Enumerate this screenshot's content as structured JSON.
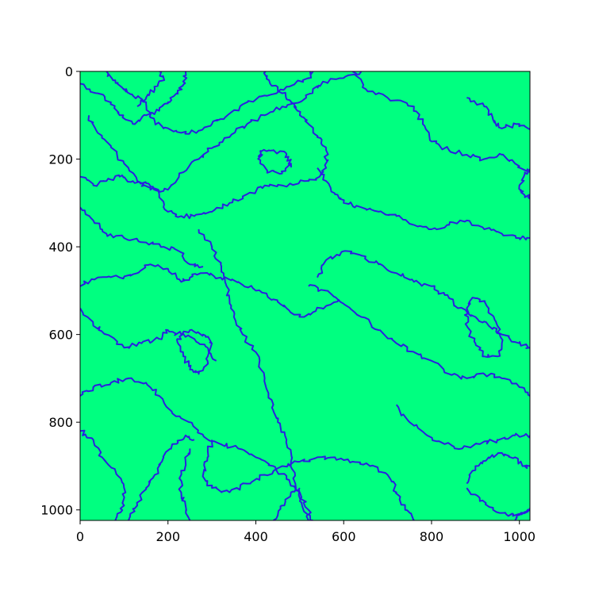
{
  "chart_data": {
    "type": "heatmap",
    "title": "",
    "xlabel": "",
    "ylabel": "",
    "xlim": [
      0,
      1024
    ],
    "ylim": [
      1024,
      0
    ],
    "x_ticks": [
      "0",
      "200",
      "400",
      "600",
      "800",
      "1000"
    ],
    "y_ticks": [
      "0",
      "200",
      "400",
      "600",
      "800",
      "1000"
    ],
    "y_axis_inverted": true,
    "grid": false,
    "legend": "none",
    "colors": {
      "region_fill": "#00ff80",
      "boundary_line": "#2a1fe0",
      "axes": "#000000",
      "background": "#ffffff"
    },
    "boundaries": [
      [
        [
          0,
          28
        ],
        [
          40,
          50
        ],
        [
          70,
          70
        ],
        [
          90,
          100
        ],
        [
          120,
          120
        ],
        [
          150,
          100
        ],
        [
          180,
          90
        ],
        [
          200,
          70
        ],
        [
          220,
          50
        ],
        [
          235,
          30
        ],
        [
          240,
          0
        ]
      ],
      [
        [
          60,
          0
        ],
        [
          80,
          20
        ],
        [
          100,
          40
        ],
        [
          120,
          55
        ],
        [
          150,
          70
        ],
        [
          160,
          105
        ],
        [
          190,
          130
        ],
        [
          230,
          140
        ],
        [
          270,
          135
        ],
        [
          300,
          120
        ],
        [
          330,
          105
        ],
        [
          370,
          75
        ],
        [
          420,
          55
        ],
        [
          470,
          35
        ],
        [
          520,
          15
        ],
        [
          530,
          0
        ]
      ],
      [
        [
          180,
          0
        ],
        [
          190,
          20
        ],
        [
          170,
          40
        ],
        [
          150,
          60
        ],
        [
          130,
          80
        ]
      ],
      [
        [
          20,
          100
        ],
        [
          40,
          140
        ],
        [
          70,
          170
        ],
        [
          100,
          210
        ],
        [
          130,
          250
        ],
        [
          160,
          270
        ],
        [
          200,
          270
        ],
        [
          235,
          230
        ],
        [
          270,
          200
        ],
        [
          300,
          175
        ],
        [
          340,
          150
        ],
        [
          380,
          120
        ],
        [
          420,
          100
        ],
        [
          460,
          80
        ],
        [
          500,
          70
        ],
        [
          530,
          40
        ],
        [
          560,
          25
        ],
        [
          600,
          15
        ],
        [
          640,
          0
        ]
      ],
      [
        [
          0,
          240
        ],
        [
          30,
          260
        ],
        [
          60,
          250
        ],
        [
          90,
          240
        ],
        [
          120,
          250
        ],
        [
          150,
          255
        ],
        [
          180,
          280
        ],
        [
          200,
          320
        ],
        [
          230,
          330
        ],
        [
          260,
          330
        ],
        [
          300,
          320
        ],
        [
          340,
          300
        ],
        [
          380,
          280
        ],
        [
          420,
          260
        ],
        [
          460,
          260
        ],
        [
          510,
          250
        ],
        [
          545,
          240
        ],
        [
          560,
          220
        ],
        [
          560,
          180
        ],
        [
          540,
          150
        ],
        [
          520,
          120
        ],
        [
          500,
          100
        ],
        [
          480,
          70
        ],
        [
          460,
          50
        ],
        [
          430,
          20
        ],
        [
          420,
          0
        ]
      ],
      [
        [
          0,
          310
        ],
        [
          30,
          340
        ],
        [
          60,
          370
        ],
        [
          100,
          380
        ],
        [
          150,
          390
        ],
        [
          190,
          400
        ],
        [
          225,
          410
        ],
        [
          250,
          440
        ],
        [
          280,
          445
        ]
      ],
      [
        [
          0,
          490
        ],
        [
          40,
          470
        ],
        [
          90,
          470
        ],
        [
          130,
          460
        ],
        [
          160,
          440
        ],
        [
          200,
          450
        ],
        [
          230,
          480
        ],
        [
          250,
          470
        ],
        [
          280,
          460
        ],
        [
          320,
          470
        ],
        [
          360,
          480
        ],
        [
          400,
          500
        ],
        [
          440,
          520
        ],
        [
          470,
          540
        ],
        [
          510,
          560
        ],
        [
          550,
          540
        ],
        [
          590,
          520
        ]
      ],
      [
        [
          270,
          360
        ],
        [
          300,
          400
        ],
        [
          320,
          440
        ],
        [
          330,
          480
        ],
        [
          340,
          520
        ],
        [
          350,
          560
        ],
        [
          370,
          600
        ],
        [
          400,
          640
        ],
        [
          420,
          700
        ],
        [
          440,
          760
        ],
        [
          450,
          800
        ],
        [
          470,
          840
        ],
        [
          480,
          890
        ],
        [
          490,
          940
        ],
        [
          500,
          980
        ],
        [
          520,
          1024
        ]
      ],
      [
        [
          540,
          470
        ],
        [
          560,
          430
        ],
        [
          600,
          410
        ],
        [
          640,
          420
        ],
        [
          680,
          440
        ],
        [
          720,
          460
        ],
        [
          760,
          480
        ],
        [
          800,
          490
        ],
        [
          830,
          510
        ],
        [
          860,
          540
        ],
        [
          900,
          560
        ],
        [
          930,
          580
        ],
        [
          960,
          600
        ],
        [
          1000,
          620
        ],
        [
          1024,
          630
        ]
      ],
      [
        [
          520,
          490
        ],
        [
          560,
          500
        ],
        [
          600,
          530
        ],
        [
          640,
          560
        ],
        [
          680,
          590
        ],
        [
          720,
          620
        ],
        [
          760,
          640
        ],
        [
          800,
          660
        ],
        [
          840,
          690
        ],
        [
          880,
          700
        ],
        [
          920,
          690
        ],
        [
          960,
          700
        ],
        [
          1000,
          720
        ],
        [
          1024,
          740
        ]
      ],
      [
        [
          540,
          220
        ],
        [
          560,
          250
        ],
        [
          580,
          280
        ],
        [
          600,
          300
        ],
        [
          640,
          310
        ],
        [
          680,
          320
        ],
        [
          720,
          330
        ],
        [
          760,
          350
        ],
        [
          800,
          360
        ],
        [
          840,
          350
        ],
        [
          880,
          340
        ],
        [
          920,
          360
        ],
        [
          960,
          370
        ],
        [
          1000,
          380
        ],
        [
          1024,
          380
        ]
      ],
      [
        [
          620,
          0
        ],
        [
          650,
          40
        ],
        [
          700,
          60
        ],
        [
          760,
          80
        ],
        [
          780,
          120
        ],
        [
          800,
          160
        ],
        [
          840,
          180
        ],
        [
          880,
          190
        ],
        [
          920,
          200
        ],
        [
          960,
          190
        ],
        [
          990,
          210
        ],
        [
          1024,
          230
        ]
      ],
      [
        [
          880,
          60
        ],
        [
          920,
          80
        ],
        [
          940,
          110
        ],
        [
          960,
          130
        ],
        [
          1000,
          120
        ],
        [
          1024,
          130
        ]
      ],
      [
        [
          0,
          540
        ],
        [
          30,
          580
        ],
        [
          60,
          600
        ],
        [
          100,
          630
        ],
        [
          140,
          620
        ],
        [
          180,
          610
        ],
        [
          200,
          590
        ],
        [
          230,
          600
        ],
        [
          260,
          610
        ],
        [
          290,
          630
        ],
        [
          310,
          660
        ]
      ],
      [
        [
          0,
          740
        ],
        [
          30,
          720
        ],
        [
          70,
          710
        ],
        [
          110,
          700
        ],
        [
          150,
          710
        ],
        [
          180,
          740
        ],
        [
          210,
          780
        ],
        [
          250,
          800
        ],
        [
          280,
          830
        ],
        [
          320,
          850
        ],
        [
          360,
          860
        ],
        [
          400,
          880
        ],
        [
          440,
          900
        ],
        [
          470,
          930
        ],
        [
          500,
          960
        ],
        [
          520,
          1000
        ],
        [
          530,
          1024
        ]
      ],
      [
        [
          0,
          820
        ],
        [
          30,
          840
        ],
        [
          50,
          880
        ],
        [
          80,
          910
        ],
        [
          100,
          950
        ],
        [
          100,
          990
        ],
        [
          80,
          1024
        ]
      ],
      [
        [
          110,
          1024
        ],
        [
          130,
          990
        ],
        [
          150,
          950
        ],
        [
          170,
          920
        ],
        [
          190,
          880
        ],
        [
          210,
          850
        ],
        [
          240,
          830
        ],
        [
          260,
          840
        ]
      ],
      [
        [
          250,
          1024
        ],
        [
          240,
          990
        ],
        [
          230,
          960
        ],
        [
          230,
          920
        ],
        [
          240,
          890
        ],
        [
          250,
          860
        ]
      ],
      [
        [
          300,
          840
        ],
        [
          290,
          880
        ],
        [
          280,
          920
        ],
        [
          300,
          950
        ],
        [
          340,
          960
        ],
        [
          380,
          940
        ],
        [
          420,
          920
        ],
        [
          460,
          900
        ],
        [
          500,
          890
        ],
        [
          540,
          880
        ],
        [
          580,
          880
        ],
        [
          620,
          890
        ],
        [
          660,
          900
        ],
        [
          700,
          920
        ],
        [
          720,
          960
        ],
        [
          740,
          1000
        ],
        [
          760,
          1024
        ]
      ],
      [
        [
          720,
          760
        ],
        [
          750,
          800
        ],
        [
          790,
          830
        ],
        [
          830,
          850
        ],
        [
          870,
          860
        ],
        [
          910,
          850
        ],
        [
          950,
          840
        ],
        [
          990,
          830
        ],
        [
          1024,
          830
        ]
      ],
      [
        [
          880,
          940
        ],
        [
          900,
          900
        ],
        [
          930,
          880
        ],
        [
          960,
          870
        ],
        [
          990,
          880
        ],
        [
          1010,
          900
        ],
        [
          1024,
          900
        ]
      ],
      [
        [
          880,
          950
        ],
        [
          910,
          980
        ],
        [
          940,
          1000
        ],
        [
          970,
          1010
        ],
        [
          1000,
          1010
        ],
        [
          1024,
          1000
        ]
      ],
      [
        [
          990,
          1024
        ],
        [
          1000,
          1010
        ],
        [
          1024,
          1000
        ]
      ],
      [
        [
          890,
          520
        ],
        [
          910,
          520
        ],
        [
          930,
          540
        ],
        [
          950,
          580
        ],
        [
          960,
          620
        ],
        [
          950,
          650
        ],
        [
          920,
          650
        ],
        [
          900,
          620
        ],
        [
          880,
          580
        ],
        [
          880,
          540
        ],
        [
          890,
          520
        ]
      ],
      [
        [
          220,
          610
        ],
        [
          250,
          590
        ],
        [
          280,
          600
        ],
        [
          300,
          620
        ],
        [
          290,
          660
        ],
        [
          270,
          690
        ],
        [
          250,
          680
        ],
        [
          235,
          650
        ],
        [
          220,
          610
        ]
      ],
      [
        [
          410,
          180
        ],
        [
          440,
          180
        ],
        [
          470,
          190
        ],
        [
          480,
          210
        ],
        [
          460,
          230
        ],
        [
          430,
          230
        ],
        [
          410,
          210
        ],
        [
          410,
          180
        ]
      ],
      [
        [
          1024,
          220
        ],
        [
          1010,
          240
        ],
        [
          1000,
          260
        ],
        [
          1010,
          280
        ],
        [
          1024,
          290
        ]
      ],
      [
        [
          440,
          1024
        ],
        [
          460,
          990
        ],
        [
          480,
          960
        ],
        [
          500,
          950
        ]
      ]
    ]
  }
}
